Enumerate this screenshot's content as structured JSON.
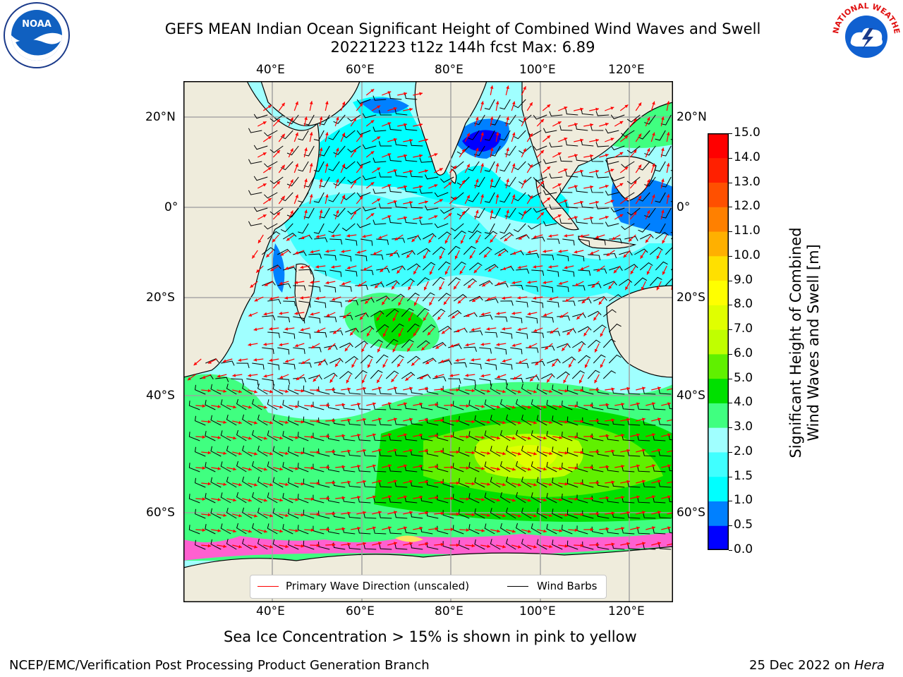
{
  "header": {
    "title_line1": "GEFS MEAN Indian Ocean Significant Height of Combined Wind Waves and Swell",
    "title_line2": "20221223 t12z 144h fcst   Max: 6.89"
  },
  "logos": {
    "left": {
      "name": "noaa-logo",
      "text": "NOAA"
    },
    "right": {
      "name": "nws-logo",
      "text": "NATIONAL WEATHER SERVICE"
    }
  },
  "map": {
    "lon_ticks": [
      "40°E",
      "60°E",
      "80°E",
      "100°E",
      "120°E"
    ],
    "lat_ticks": [
      "20°N",
      "0°",
      "20°S",
      "40°S",
      "60°S"
    ],
    "legend": {
      "wave_dir": "Primary Wave Direction (unscaled)",
      "wind_barbs": "Wind Barbs",
      "wave_color": "#ff0000",
      "barb_color": "#000000"
    }
  },
  "colorbar": {
    "label_line1": "Significant Height of Combined",
    "label_line2": "Wind Waves and Swell [m]",
    "ticks": [
      "0.0",
      "0.5",
      "1.0",
      "1.5",
      "2.0",
      "3.0",
      "4.0",
      "5.0",
      "6.0",
      "7.0",
      "8.0",
      "9.0",
      "10.0",
      "11.0",
      "12.0",
      "13.0",
      "14.0",
      "15.0"
    ],
    "colors": [
      "#0000ff",
      "#0080ff",
      "#00ffff",
      "#40ffff",
      "#a0ffff",
      "#40ff80",
      "#00e000",
      "#60f000",
      "#c0ff00",
      "#e0ff00",
      "#ffff00",
      "#ffe000",
      "#ffb000",
      "#ff8000",
      "#ff5000",
      "#ff2000",
      "#ff0000"
    ]
  },
  "note": "Sea Ice Concentration > 15% is shown in pink to yellow",
  "footer": {
    "left": "NCEP/EMC/Verification Post Processing Product Generation Branch",
    "date": "25 Dec 2022 on ",
    "machine": "Hera"
  }
}
